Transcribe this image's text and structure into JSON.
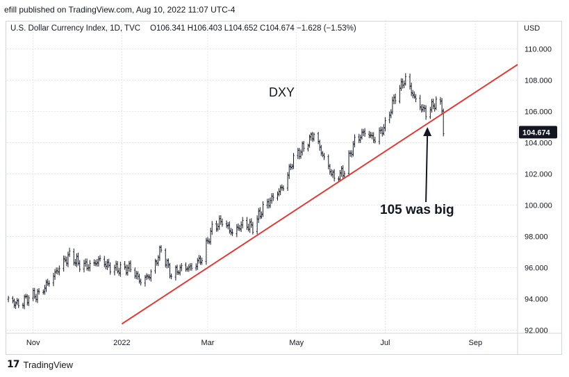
{
  "header": {
    "published_text": "efill published on TradingView.com, Aug 10, 2022 11:07 UTC-4"
  },
  "footer": {
    "logo_glyph": "17",
    "brand": "TradingView"
  },
  "colors": {
    "trendline": "#e53935",
    "candle": "#131722",
    "grid": "#e0e3eb",
    "price_tag_bg": "#131722",
    "price_tag_text": "#ffffff"
  },
  "chart_data": {
    "type": "candlestick",
    "legend": {
      "symbol": "U.S. Dollar Currency Index, 1D, TVC",
      "ohlc": "O106.341 H106.403 L104.652 C104.674 −1.628 (−1.53%)"
    },
    "currency_label": "USD",
    "annotation_title": "DXY",
    "annotation_note": "105 was big",
    "last_price_label": "104.674",
    "y_axis": {
      "ticks": [
        110,
        108,
        106,
        104,
        102,
        100,
        98,
        96,
        94,
        92
      ],
      "tick_labels": [
        "110.000",
        "108.000",
        "106.000",
        "104.000",
        "102.000",
        "100.000",
        "98.000",
        "96.000",
        "94.000",
        "92.000"
      ],
      "range": [
        91.8,
        111.8
      ]
    },
    "x_axis": {
      "labels": [
        "Nov",
        "2022",
        "Mar",
        "May",
        "Jul",
        "Sep"
      ],
      "label_dates": [
        "2021-11-01",
        "2022-01-01",
        "2022-03-01",
        "2022-05-01",
        "2022-07-01",
        "2022-09-01"
      ],
      "range": [
        "2021-10-14",
        "2022-09-30"
      ]
    },
    "trendline": {
      "start": [
        "2022-01-01",
        92.4
      ],
      "end": [
        "2022-09-30",
        109.0
      ]
    },
    "arrow": {
      "from": [
        "2022-07-29",
        100.2
      ],
      "to": [
        "2022-07-30",
        105.0
      ]
    },
    "closes": [
      [
        "2021-10-15",
        93.96
      ],
      [
        "2021-10-22",
        93.64
      ],
      [
        "2021-10-29",
        94.12
      ],
      [
        "2021-11-05",
        94.3
      ],
      [
        "2021-11-12",
        95.1
      ],
      [
        "2021-11-19",
        96.0
      ],
      [
        "2021-11-26",
        96.8
      ],
      [
        "2021-12-03",
        96.2
      ],
      [
        "2021-12-10",
        96.1
      ],
      [
        "2021-12-17",
        96.5
      ],
      [
        "2021-12-24",
        96.0
      ],
      [
        "2021-12-31",
        95.9
      ],
      [
        "2022-01-07",
        96.0
      ],
      [
        "2022-01-14",
        95.1
      ],
      [
        "2022-01-21",
        95.6
      ],
      [
        "2022-01-28",
        97.2
      ],
      [
        "2022-02-04",
        95.5
      ],
      [
        "2022-02-11",
        96.0
      ],
      [
        "2022-02-18",
        96.0
      ],
      [
        "2022-02-25",
        96.6
      ],
      [
        "2022-03-04",
        98.5
      ],
      [
        "2022-03-11",
        99.0
      ],
      [
        "2022-03-18",
        98.2
      ],
      [
        "2022-03-25",
        98.8
      ],
      [
        "2022-04-01",
        98.6
      ],
      [
        "2022-04-08",
        99.8
      ],
      [
        "2022-04-15",
        100.5
      ],
      [
        "2022-04-22",
        101.2
      ],
      [
        "2022-04-29",
        103.0
      ],
      [
        "2022-05-06",
        103.7
      ],
      [
        "2022-05-13",
        104.6
      ],
      [
        "2022-05-20",
        103.0
      ],
      [
        "2022-05-27",
        101.7
      ],
      [
        "2022-06-03",
        102.2
      ],
      [
        "2022-06-10",
        104.1
      ],
      [
        "2022-06-17",
        104.7
      ],
      [
        "2022-06-24",
        104.2
      ],
      [
        "2022-07-01",
        105.1
      ],
      [
        "2022-07-08",
        107.0
      ],
      [
        "2022-07-15",
        108.1
      ],
      [
        "2022-07-22",
        106.7
      ],
      [
        "2022-07-29",
        105.9
      ],
      [
        "2022-08-05",
        106.6
      ],
      [
        "2022-08-09",
        106.34
      ],
      [
        "2022-08-10",
        104.67
      ]
    ]
  }
}
